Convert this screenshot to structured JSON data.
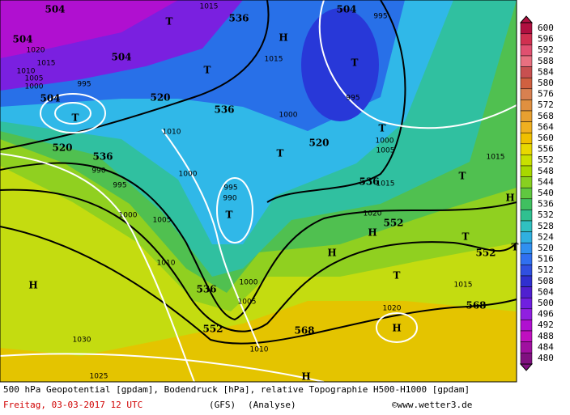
{
  "map": {
    "labels": [
      "504",
      "504",
      "504",
      "504",
      "1020",
      "1015",
      "1010",
      "1005",
      "1000",
      "995",
      "504",
      "T",
      "520",
      "536",
      "990",
      "995",
      "1000",
      "1005",
      "1010",
      "H",
      "1030",
      "1025",
      "T",
      "T",
      "520",
      "1010",
      "1000",
      "536",
      "H",
      "1015",
      "536",
      "1000",
      "T",
      "520",
      "T",
      "995",
      "990",
      "536",
      "1000",
      "1005",
      "552",
      "568",
      "1010",
      "H",
      "T",
      "995",
      "995",
      "T",
      "1005",
      "1000",
      "536",
      "1015",
      "552",
      "1020",
      "H",
      "H",
      "T",
      "1015",
      "568",
      "1020",
      "H",
      "T",
      "H",
      "T",
      "552",
      "T",
      "1015",
      "1015"
    ],
    "scale": [
      600,
      596,
      592,
      588,
      584,
      580,
      576,
      572,
      568,
      564,
      560,
      556,
      552,
      548,
      544,
      540,
      536,
      532,
      528,
      524,
      520,
      516,
      512,
      508,
      504,
      500,
      496,
      492,
      488,
      484,
      480
    ]
  },
  "footer": {
    "description": "500 hPa Geopotential [gpdam], Bodendruck [hPa], relative Topographie H500-H1000 [gpdam]",
    "date": "Freitag, 03-03-2017  12 UTC",
    "model": "(GFS)",
    "run": "(Analyse)",
    "source": "©www.wetter3.de"
  }
}
